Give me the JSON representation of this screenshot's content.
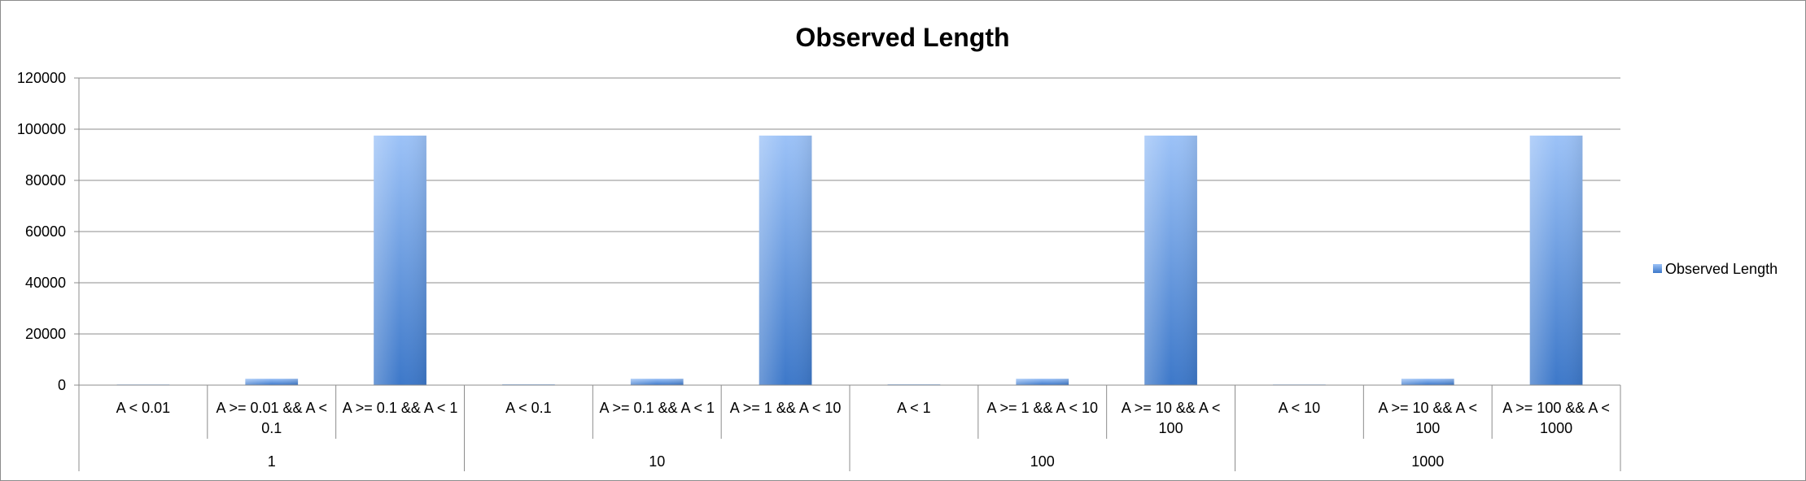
{
  "chart_data": {
    "type": "bar",
    "title": "Observed Length",
    "xlabel": "",
    "ylabel": "",
    "ylim": [
      0,
      120000
    ],
    "yticks": [
      0,
      20000,
      40000,
      60000,
      80000,
      100000,
      120000
    ],
    "grid": true,
    "legend_position": "right",
    "groups": [
      {
        "label": "1",
        "categories": [
          [
            "A < 0.01"
          ],
          [
            "A >= 0.01 && A <",
            "0.1"
          ],
          [
            "A >= 0.1 && A < 1"
          ]
        ]
      },
      {
        "label": "10",
        "categories": [
          [
            "A < 0.1"
          ],
          [
            "A >= 0.1 && A < 1"
          ],
          [
            "A >= 1 && A < 10"
          ]
        ]
      },
      {
        "label": "100",
        "categories": [
          [
            "A < 1"
          ],
          [
            "A >= 1 && A < 10"
          ],
          [
            "A >= 10 && A <",
            "100"
          ]
        ]
      },
      {
        "label": "1000",
        "categories": [
          [
            "A < 10"
          ],
          [
            "A >= 10 && A <",
            "100"
          ],
          [
            "A >= 100 && A <",
            "1000"
          ]
        ]
      }
    ],
    "series": [
      {
        "name": "Observed Length",
        "color": "#4f81bd",
        "values": [
          0,
          2500,
          97500,
          300,
          2500,
          97500,
          300,
          2500,
          97500,
          0,
          2500,
          97500
        ]
      }
    ]
  }
}
